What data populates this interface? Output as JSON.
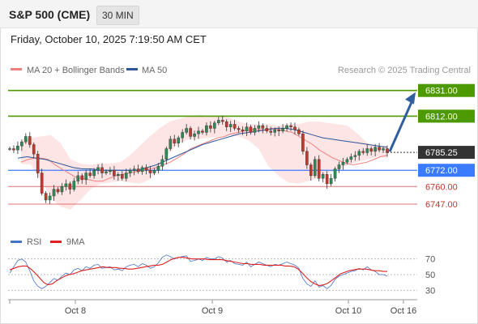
{
  "header": {
    "title": "S&P 500 (CME)",
    "timeframe": "30 MIN"
  },
  "datetime": "Friday, October 10, 2025 7:19:50 AM CET",
  "legend": [
    {
      "label": "MA 20 + Bollinger Bands",
      "color": "#f08080"
    },
    {
      "label": "MA 50",
      "color": "#2f5597"
    }
  ],
  "credit": "Research © 2025 Trading Central",
  "rsi_legend": [
    {
      "label": "RSI",
      "color": "#4472c4"
    },
    {
      "label": "9MA",
      "color": "#e02020"
    }
  ],
  "colors": {
    "up": "#2e8b57",
    "down": "#c0392b",
    "resistance": "#4d9900",
    "support": "#3a7bff",
    "bb_fill": "#fde0e0",
    "arrow": "#2f5f9f"
  },
  "chart_data": [
    {
      "type": "candlestick",
      "title": "S&P 500 (CME)",
      "timeframe": "30 MIN",
      "x_ticks": [
        "Oct 8",
        "Oct 9",
        "Oct 10",
        "Oct 16"
      ],
      "ylim": [
        6735,
        6838
      ],
      "current_price": "6785.25",
      "levels": [
        {
          "value": 6831.0,
          "label": "6831.00",
          "style": "resistance-box"
        },
        {
          "value": 6812.0,
          "label": "6812.00",
          "style": "resistance-box"
        },
        {
          "value": 6772.0,
          "label": "6772.00",
          "style": "support-box"
        },
        {
          "value": 6760.0,
          "label": "6760.00",
          "style": "line"
        },
        {
          "value": 6747.0,
          "label": "6747.00",
          "style": "line"
        }
      ],
      "forecast_target": 6831.0,
      "closes": [
        6788,
        6787,
        6790,
        6793,
        6797,
        6791,
        6784,
        6770,
        6755,
        6750,
        6753,
        6758,
        6756,
        6760,
        6762,
        6758,
        6764,
        6768,
        6765,
        6770,
        6768,
        6772,
        6774,
        6770,
        6771,
        6772,
        6768,
        6769,
        6766,
        6770,
        6772,
        6773,
        6771,
        6774,
        6772,
        6770,
        6772,
        6775,
        6780,
        6788,
        6795,
        6792,
        6796,
        6800,
        6803,
        6797,
        6799,
        6801,
        6800,
        6805,
        6803,
        6807,
        6809,
        6808,
        6804,
        6806,
        6803,
        6802,
        6801,
        6804,
        6800,
        6803,
        6805,
        6803,
        6801,
        6800,
        6802,
        6801,
        6803,
        6805,
        6804,
        6802,
        6799,
        6786,
        6776,
        6768,
        6780,
        6766,
        6769,
        6762,
        6766,
        6773,
        6776,
        6778,
        6780,
        6782,
        6783,
        6786,
        6785,
        6788,
        6786,
        6789,
        6787,
        6788,
        6785
      ],
      "ma20": [
        6778,
        6780,
        6781,
        6781,
        6780,
        6776,
        6773,
        6770,
        6767,
        6766,
        6765,
        6764,
        6764,
        6766,
        6768,
        6769,
        6770,
        6771,
        6772,
        6773,
        6774,
        6776,
        6778,
        6781,
        6784,
        6788,
        6790,
        6792,
        6794,
        6796,
        6797,
        6799,
        6800,
        6801,
        6802,
        6802,
        6802,
        6803,
        6802,
        6801,
        6800,
        6797,
        6794,
        6791,
        6787,
        6784,
        6781,
        6779,
        6777,
        6776,
        6777,
        6778,
        6780,
        6782,
        6783
      ],
      "ma50": [
        6781,
        6782,
        6781,
        6780,
        6778,
        6776,
        6774,
        6773,
        6773,
        6772,
        6772,
        6772,
        6772,
        6772,
        6774,
        6776,
        6779,
        6782,
        6785,
        6788,
        6791,
        6793,
        6795,
        6797,
        6799,
        6800,
        6801,
        6802,
        6803,
        6803,
        6802,
        6800,
        6798,
        6796,
        6795,
        6794,
        6793,
        6792,
        6791,
        6790,
        6789
      ],
      "bb_upper": [
        6795,
        6796,
        6797,
        6798,
        6792,
        6780,
        6777,
        6776,
        6777,
        6777,
        6778,
        6783,
        6790,
        6797,
        6803,
        6808,
        6810,
        6812,
        6813,
        6812,
        6812,
        6811,
        6808,
        6806,
        6806,
        6806,
        6805,
        6806,
        6806,
        6808,
        6808,
        6807,
        6806,
        6805,
        6799,
        6792,
        6790,
        6790
      ],
      "bb_lower": [
        6777,
        6776,
        6765,
        6752,
        6745,
        6743,
        6750,
        6758,
        6762,
        6763,
        6764,
        6763,
        6762,
        6765,
        6774,
        6785,
        6792,
        6795,
        6795,
        6796,
        6797,
        6798,
        6797,
        6794,
        6788,
        6775,
        6768,
        6763,
        6762,
        6764,
        6766,
        6770,
        6772,
        6776,
        6778,
        6780,
        6782,
        6781
      ]
    },
    {
      "type": "line",
      "title": "RSI",
      "ylim": [
        20,
        80
      ],
      "y_ticks": [
        "70",
        "50",
        "30"
      ],
      "series": [
        {
          "name": "RSI",
          "values": [
            52,
            60,
            68,
            70,
            66,
            55,
            42,
            35,
            32,
            35,
            40,
            45,
            43,
            48,
            52,
            50,
            56,
            58,
            55,
            60,
            58,
            62,
            63,
            58,
            59,
            60,
            56,
            57,
            55,
            60,
            62,
            63,
            60,
            64,
            62,
            58,
            60,
            65,
            72,
            75,
            73,
            70,
            72,
            73,
            74,
            67,
            68,
            70,
            68,
            72,
            70,
            70,
            73,
            71,
            66,
            68,
            64,
            63,
            62,
            66,
            60,
            63,
            66,
            64,
            62,
            60,
            63,
            62,
            64,
            66,
            64,
            62,
            58,
            45,
            38,
            35,
            42,
            34,
            36,
            32,
            36,
            44,
            48,
            50,
            52,
            54,
            55,
            58,
            56,
            60,
            56,
            54,
            50,
            50,
            48
          ]
        },
        {
          "name": "9MA",
          "values": [
            56,
            58,
            60,
            61,
            61,
            57,
            52,
            46,
            40,
            37,
            38,
            42,
            45,
            48,
            50,
            51,
            53,
            55,
            56,
            57,
            58,
            59,
            60,
            59,
            59,
            59,
            58,
            58,
            57,
            57,
            58,
            59,
            60,
            61,
            62,
            62,
            63,
            66,
            69,
            71,
            72,
            72,
            71,
            70,
            70,
            70,
            70,
            69,
            69,
            69,
            69,
            68,
            67,
            66,
            65,
            64,
            64,
            63,
            63,
            63,
            62,
            62,
            62,
            62,
            62,
            61,
            61,
            60,
            57,
            52,
            46,
            41,
            38,
            36,
            37,
            39,
            43,
            47,
            51,
            53,
            55,
            56,
            57,
            57,
            57,
            56,
            55,
            55,
            54,
            54
          ]
        }
      ]
    }
  ]
}
